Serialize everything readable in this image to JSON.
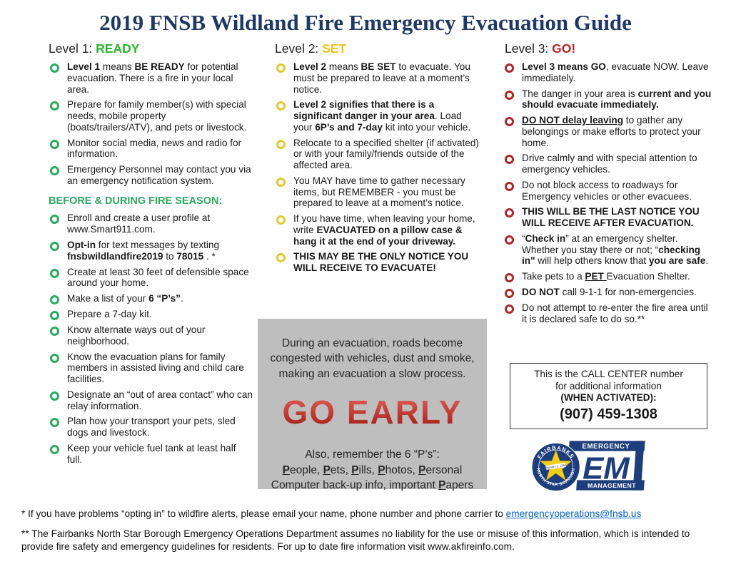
{
  "page": {
    "title": "2019 FNSB Wildland Fire Emergency Evacuation Guide",
    "title_color": "#1f3864"
  },
  "columns": [
    {
      "header_prefix": "Level 1: ",
      "header_keyword": "READY",
      "keyword_color": "#2db32d",
      "bullet_color": "#2ea860",
      "items": [
        [
          {
            "t": "Level 1",
            "b": 1
          },
          {
            "t": " means "
          },
          {
            "t": "BE READY",
            "b": 1
          },
          {
            "t": " for potential evacuation. There is a fire in your local area."
          }
        ],
        [
          {
            "t": "Prepare for family member(s) with special needs, mobile property (boats/trailers/ATV), and pets or livestock."
          }
        ],
        [
          {
            "t": "Monitor social media, news and radio for information."
          }
        ],
        [
          {
            "t": "Emergency Personnel may contact you via an emergency notification system."
          }
        ]
      ],
      "section_header": "BEFORE & DURING FIRE SEASON:",
      "section_header_color": "#2ea860",
      "section_items": [
        [
          {
            "t": "Enroll and create a user profile at www.Smart911.com."
          }
        ],
        [
          {
            "t": "Opt-in",
            "b": 1
          },
          {
            "t": " for text messages by texting "
          },
          {
            "t": "fnsbwildlandfire2019",
            "b": 1
          },
          {
            "t": " to "
          },
          {
            "t": "78015",
            "b": 1
          },
          {
            "t": " . *"
          }
        ],
        [
          {
            "t": "Create at least 30 feet of defensible space around your home."
          }
        ],
        [
          {
            "t": "Make a list of your "
          },
          {
            "t": "6 “P’s”",
            "b": 1
          },
          {
            "t": "."
          }
        ],
        [
          {
            "t": "Prepare a 7-day kit."
          }
        ],
        [
          {
            "t": "Know alternate ways out of your neighborhood."
          }
        ],
        [
          {
            "t": "Know the evacuation plans for family members in assisted living and child care facilities."
          }
        ],
        [
          {
            "t": "Designate an “out of area contact” who can relay information."
          }
        ],
        [
          {
            "t": "Plan how your transport your pets, sled dogs and livestock."
          }
        ],
        [
          {
            "t": "Keep your vehicle fuel tank at least half full."
          }
        ]
      ]
    },
    {
      "header_prefix": "Level 2: ",
      "header_keyword": "SET",
      "keyword_color": "#f0c419",
      "bullet_color": "#e3c832",
      "items": [
        [
          {
            "t": "Level 2",
            "b": 1
          },
          {
            "t": " means "
          },
          {
            "t": "BE SET",
            "b": 1
          },
          {
            "t": " to evacuate. You must be prepared to leave at a moment’s notice."
          }
        ],
        [
          {
            "t": "Level 2 signifies that there is a significant danger in your area",
            "b": 1
          },
          {
            "t": ". Load your "
          },
          {
            "t": "6P’s and 7-day",
            "b": 1
          },
          {
            "t": " kit into your vehicle."
          }
        ],
        [
          {
            "t": "Relocate to a specified shelter (if activated) or with your family/friends outside of the affected area."
          }
        ],
        [
          {
            "t": "You MAY have time to gather necessary items, but REMEMBER - you must be prepared to leave at a moment’s notice."
          }
        ],
        [
          {
            "t": "If you have time, when leaving your home, write "
          },
          {
            "t": "EVACUATED on a pillow case & hang it at the end of your driveway.",
            "b": 1
          }
        ],
        [
          {
            "t": "THIS MAY BE THE ONLY NOTICE YOU WILL RECEIVE TO EVACUATE!",
            "b": 1
          }
        ]
      ]
    },
    {
      "header_prefix": "Level 3: ",
      "header_keyword": "GO!",
      "keyword_color": "#b32425",
      "bullet_color": "#a9282c",
      "items": [
        [
          {
            "t": "Level 3 means GO",
            "b": 1
          },
          {
            "t": ", evacuate NOW. Leave immediately."
          }
        ],
        [
          {
            "t": "The danger in your area is "
          },
          {
            "t": "current and you should evacuate immediately.",
            "b": 1
          }
        ],
        [
          {
            "t": "DO NOT delay leaving",
            "b": 1,
            "u": 1
          },
          {
            "t": " to gather any belongings or make efforts to protect your home."
          }
        ],
        [
          {
            "t": "Drive calmly and with special attention to emergency vehicles."
          }
        ],
        [
          {
            "t": "Do not block access to roadways for Emergency vehicles or other evacuees."
          }
        ],
        [
          {
            "t": "THIS WILL BE THE LAST NOTICE YOU WILL RECEIVE AFTER EVACUATION.",
            "b": 1
          }
        ],
        [
          {
            "t": "“"
          },
          {
            "t": "Check in",
            "b": 1
          },
          {
            "t": "” at an emergency shelter. Whether you stay there or not; “"
          },
          {
            "t": "checking in\"",
            "b": 1
          },
          {
            "t": " will help others know that "
          },
          {
            "t": "you are safe",
            "b": 1
          },
          {
            "t": "."
          }
        ],
        [
          {
            "t": "Take pets to a "
          },
          {
            "t": "PET ",
            "b": 1,
            "u": 1
          },
          {
            "t": "Evacuation Shelter."
          }
        ],
        [
          {
            "t": "DO NOT",
            "b": 1
          },
          {
            "t": " call 9-1-1 for non-emergencies."
          }
        ],
        [
          {
            "t": "Do not attempt to re-enter the fire area until it is declared safe to do so.**"
          }
        ]
      ]
    }
  ],
  "go_early_box": {
    "bg": "#bebebe",
    "intro": "During an evacuation, roads become congested with vehicles, dust and smoke, making an evacuation a slow process.",
    "headline": "GO EARLY",
    "headline_color": "#b52419",
    "headline_gradient": [
      "#e8625a",
      "#9c1a12"
    ],
    "also_line": "Also, remember the 6 “P’s”:",
    "ps_segments": [
      {
        "t": "P",
        "b": 1,
        "u": 1
      },
      {
        "t": "eople, "
      },
      {
        "t": "P",
        "b": 1,
        "u": 1
      },
      {
        "t": "ets, "
      },
      {
        "t": "P",
        "b": 1,
        "u": 1
      },
      {
        "t": "ills, "
      },
      {
        "t": "P",
        "b": 1,
        "u": 1
      },
      {
        "t": "hotos, "
      },
      {
        "t": "P",
        "b": 1,
        "u": 1
      },
      {
        "t": "ersonal Computer back-up info, important "
      },
      {
        "t": "P",
        "b": 1,
        "u": 1
      },
      {
        "t": "apers"
      }
    ]
  },
  "call_center_box": {
    "line1": "This is the CALL CENTER number",
    "line2": "for additional information",
    "line3": "(WHEN ACTIVATED):",
    "phone": "(907) 459-1308"
  },
  "logo": {
    "seal_top": "FAIRBANKS",
    "seal_bottom": "NORTH STAR BOROUGH",
    "seal_center_date": "January 1, 1964",
    "banner_top": "EMERGENCY",
    "em_text": "EM",
    "banner_bottom": "MANAGEMENT",
    "blue": "#1e3d7b",
    "yellow": "#f2cf1d"
  },
  "footnotes": {
    "note1_segments": [
      {
        "t": "* If you have problems “opting in” to wildfire alerts, please email your name, phone number and phone carrier to "
      },
      {
        "t": "emergencyoperations@fnsb.us",
        "link": 1
      }
    ],
    "note2": "** The Fairbanks North Star Borough Emergency Operations Department assumes no liability for the use or misuse of this information, which is intended to provide fire safety and emergency guidelines for residents.  For up to date fire information visit www.akfireinfo.com."
  }
}
